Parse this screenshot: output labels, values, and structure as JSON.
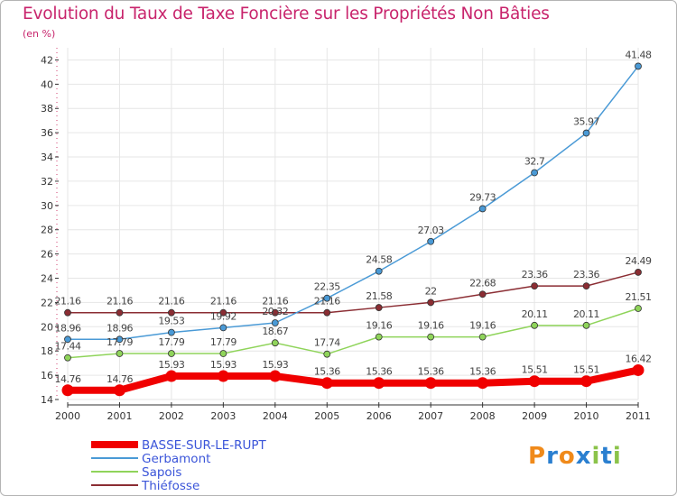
{
  "chart_data": {
    "type": "line",
    "title": "Evolution du Taux de Taxe Foncière sur les Propriétés Non Bâties",
    "subtitle": "(en %)",
    "x": [
      "2000",
      "2001",
      "2002",
      "2003",
      "2004",
      "2005",
      "2006",
      "2007",
      "2008",
      "2009",
      "2010",
      "2011"
    ],
    "ylim": [
      14,
      43
    ],
    "yticks": [
      14,
      16,
      18,
      20,
      22,
      24,
      26,
      28,
      30,
      32,
      34,
      36,
      38,
      40,
      42
    ],
    "grid": true,
    "legend_position": "bottom-left",
    "series": [
      {
        "name": "BASSE-SUR-LE-RUPT",
        "color": "#f00000",
        "values": [
          14.76,
          14.76,
          15.93,
          15.93,
          15.93,
          15.36,
          15.36,
          15.36,
          15.36,
          15.51,
          15.51,
          16.42
        ],
        "labels": [
          "14.76",
          "14.76",
          "15.93",
          "15.93",
          "15.93",
          "15.36",
          "15.36",
          "15.36",
          "15.36",
          "15.51",
          "15.51",
          "16.42"
        ]
      },
      {
        "name": "Gerbamont",
        "color": "#4a9ad6",
        "values": [
          18.96,
          18.96,
          19.53,
          19.92,
          20.32,
          22.35,
          24.58,
          27.03,
          29.73,
          32.7,
          35.97,
          41.48
        ],
        "labels": [
          "18.96",
          "18.96",
          "19.53",
          "19.92",
          "20.32",
          "22.35",
          "24.58",
          "27.03",
          "29.73",
          "32.7",
          "35.97",
          "41.48"
        ]
      },
      {
        "name": "Sapois",
        "color": "#8fd45a",
        "values": [
          17.44,
          17.79,
          17.79,
          17.79,
          18.67,
          17.74,
          19.16,
          19.16,
          19.16,
          20.11,
          20.11,
          21.51
        ],
        "labels": [
          "17.44",
          "17.79",
          "17.79",
          "17.79",
          "18.67",
          "17.74",
          "19.16",
          "19.16",
          "19.16",
          "20.11",
          "20.11",
          "21.51"
        ]
      },
      {
        "name": "Thiéfosse",
        "color": "#8b2d33",
        "values": [
          21.16,
          21.16,
          21.16,
          21.16,
          21.16,
          21.16,
          21.58,
          22,
          22.68,
          23.36,
          23.36,
          24.49
        ],
        "labels": [
          "21.16",
          "21.16",
          "21.16",
          "21.16",
          "21.16",
          "21.16",
          "21.58",
          "22",
          "22.68",
          "23.36",
          "23.36",
          "24.49"
        ]
      }
    ],
    "legend_text_color": "#3b55d9",
    "axis_label_color": "#333333",
    "value_label_color": "#444444",
    "grid_color": "#e6e6e6"
  },
  "logo": {
    "text": "Proxiti",
    "letter_colors": [
      "#f08a1a",
      "#2a7fd0",
      "#f08a1a",
      "#2a7fd0",
      "#8bc34a",
      "#2a7fd0",
      "#8bc34a"
    ]
  }
}
